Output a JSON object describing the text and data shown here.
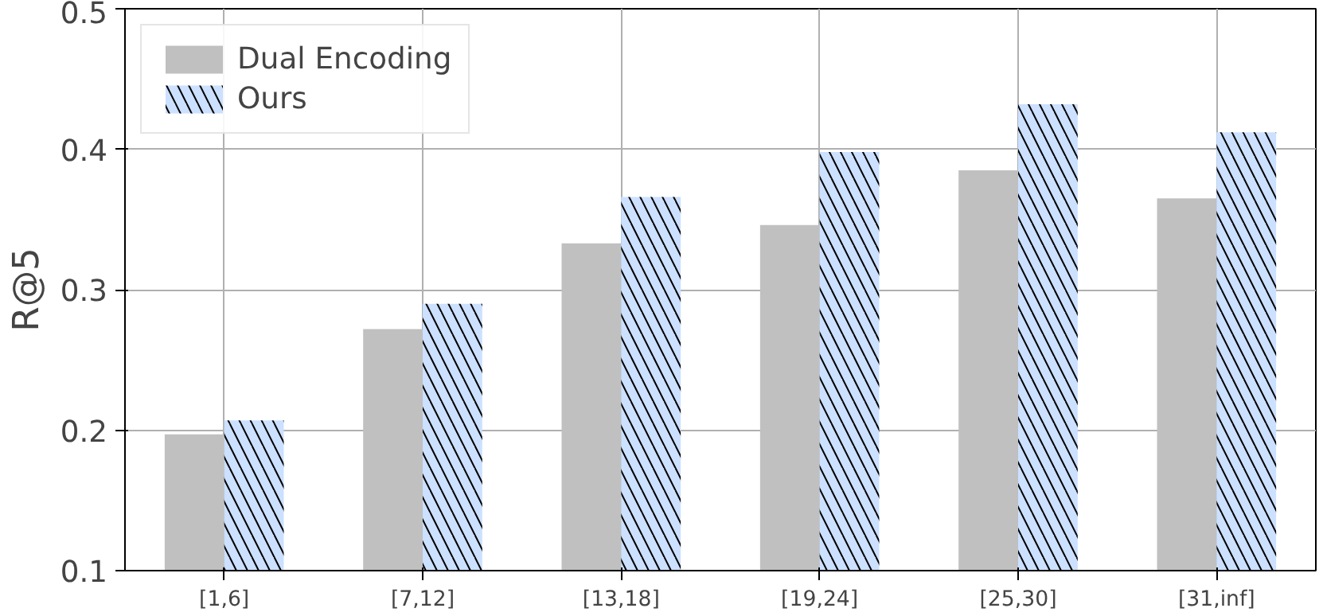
{
  "chart_data": {
    "type": "bar",
    "ylabel": "R@5",
    "categories": [
      "[1,6]",
      "[7,12]",
      "[13,18]",
      "[19,24]",
      "[25,30]",
      "[31,inf]"
    ],
    "series": [
      {
        "name": "Dual Encoding",
        "color": "#c0c0c0",
        "values": [
          0.197,
          0.272,
          0.333,
          0.346,
          0.385,
          0.365
        ]
      },
      {
        "name": "Ours",
        "color": "#cce0ff",
        "values": [
          0.207,
          0.29,
          0.366,
          0.398,
          0.432,
          0.412
        ]
      }
    ],
    "ylim": [
      0.1,
      0.5
    ],
    "yticks": [
      0.1,
      0.2,
      0.3,
      0.4,
      0.5
    ],
    "grid": true,
    "legend": "top left"
  }
}
